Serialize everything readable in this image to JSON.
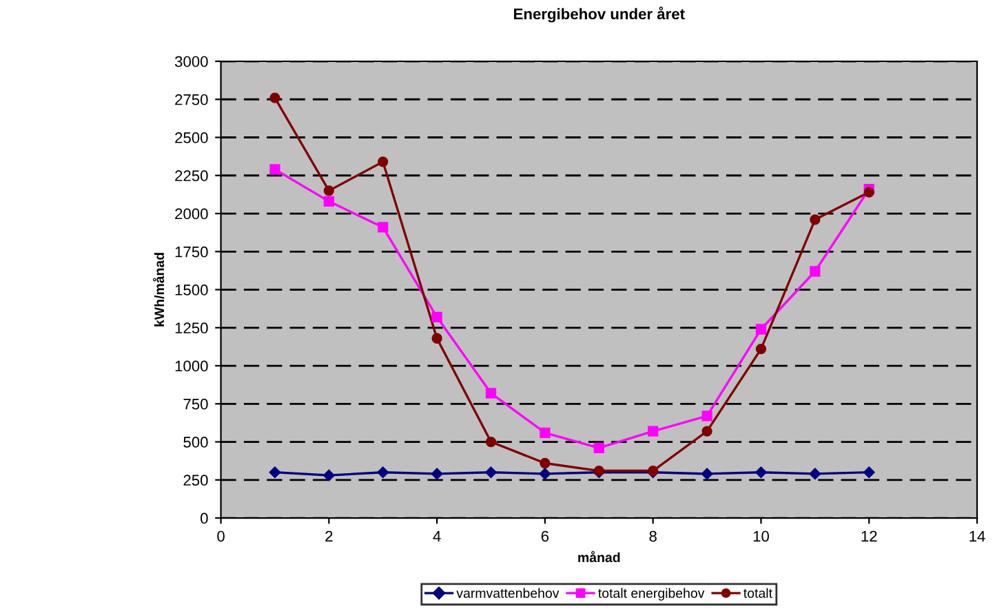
{
  "chart_data": {
    "type": "line",
    "title": "Energibehov under året",
    "xlabel": "månad",
    "ylabel": "kWh/månad",
    "x": [
      1,
      2,
      3,
      4,
      5,
      6,
      7,
      8,
      9,
      10,
      11,
      12
    ],
    "series": [
      {
        "name": "varmvattenbehov",
        "color": "#000080",
        "marker": "diamond",
        "values": [
          300,
          280,
          300,
          290,
          300,
          290,
          300,
          300,
          290,
          300,
          290,
          300
        ]
      },
      {
        "name": "totalt energibehov",
        "color": "#ff00ff",
        "marker": "square",
        "values": [
          2290,
          2080,
          1910,
          1320,
          820,
          560,
          460,
          570,
          670,
          1240,
          1620,
          2160
        ]
      },
      {
        "name": "totalt",
        "color": "#800000",
        "marker": "circle",
        "values": [
          2760,
          2150,
          2340,
          1180,
          500,
          360,
          310,
          310,
          570,
          1110,
          1960,
          2140
        ]
      }
    ],
    "xlim": [
      0,
      14
    ],
    "xticks": [
      0,
      2,
      4,
      6,
      8,
      10,
      12,
      14
    ],
    "ylim": [
      0,
      3000
    ],
    "yticks": [
      0,
      250,
      500,
      750,
      1000,
      1250,
      1500,
      1750,
      2000,
      2250,
      2500,
      2750,
      3000
    ],
    "grid": "y",
    "legend": "bottom",
    "line_style": "solid"
  }
}
